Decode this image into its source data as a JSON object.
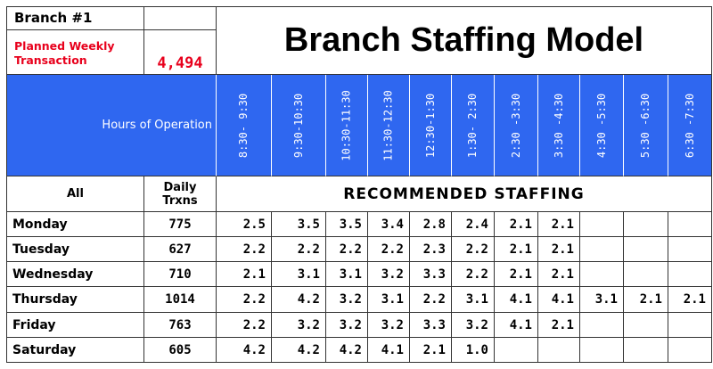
{
  "branch": "Branch #1",
  "planned": {
    "label_line1": "Planned Weekly",
    "label_line2": "Transaction",
    "value": "4,494"
  },
  "title": "Branch Staffing Model",
  "hours_label": "Hours of Operation",
  "hours": [
    "8:30- 9:30",
    "9:30-10:30",
    "10:30-11:30",
    "11:30-12:30",
    "12:30-1:30",
    "1:30- 2:30",
    "2:30 -3:30",
    "3:30 -4:30",
    "4:30 -5:30",
    "5:30 -6:30",
    "6:30 -7:30"
  ],
  "headers": {
    "all": "All",
    "daily_line1": "Daily",
    "daily_line2": "Trxns",
    "recommended": "RECOMMENDED STAFFING"
  },
  "rows": [
    {
      "day": "Monday",
      "trxns": "775",
      "values": [
        "2.5",
        "3.5",
        "3.5",
        "3.4",
        "2.8",
        "2.4",
        "2.1",
        "2.1",
        "",
        "",
        ""
      ]
    },
    {
      "day": "Tuesday",
      "trxns": "627",
      "values": [
        "2.2",
        "2.2",
        "2.2",
        "2.2",
        "2.3",
        "2.2",
        "2.1",
        "2.1",
        "",
        "",
        ""
      ]
    },
    {
      "day": "Wednesday",
      "trxns": "710",
      "values": [
        "2.1",
        "3.1",
        "3.1",
        "3.2",
        "3.3",
        "2.2",
        "2.1",
        "2.1",
        "",
        "",
        ""
      ]
    },
    {
      "day": "Thursday",
      "trxns": "1014",
      "values": [
        "2.2",
        "4.2",
        "3.2",
        "3.1",
        "2.2",
        "3.1",
        "4.1",
        "4.1",
        "3.1",
        "2.1",
        "2.1"
      ]
    },
    {
      "day": "Friday",
      "trxns": "763",
      "values": [
        "2.2",
        "3.2",
        "3.2",
        "3.2",
        "3.3",
        "3.2",
        "4.1",
        "2.1",
        "",
        "",
        ""
      ]
    },
    {
      "day": "Saturday",
      "trxns": "605",
      "values": [
        "4.2",
        "4.2",
        "4.2",
        "4.1",
        "2.1",
        "1.0",
        "",
        "",
        "",
        "",
        ""
      ]
    }
  ]
}
